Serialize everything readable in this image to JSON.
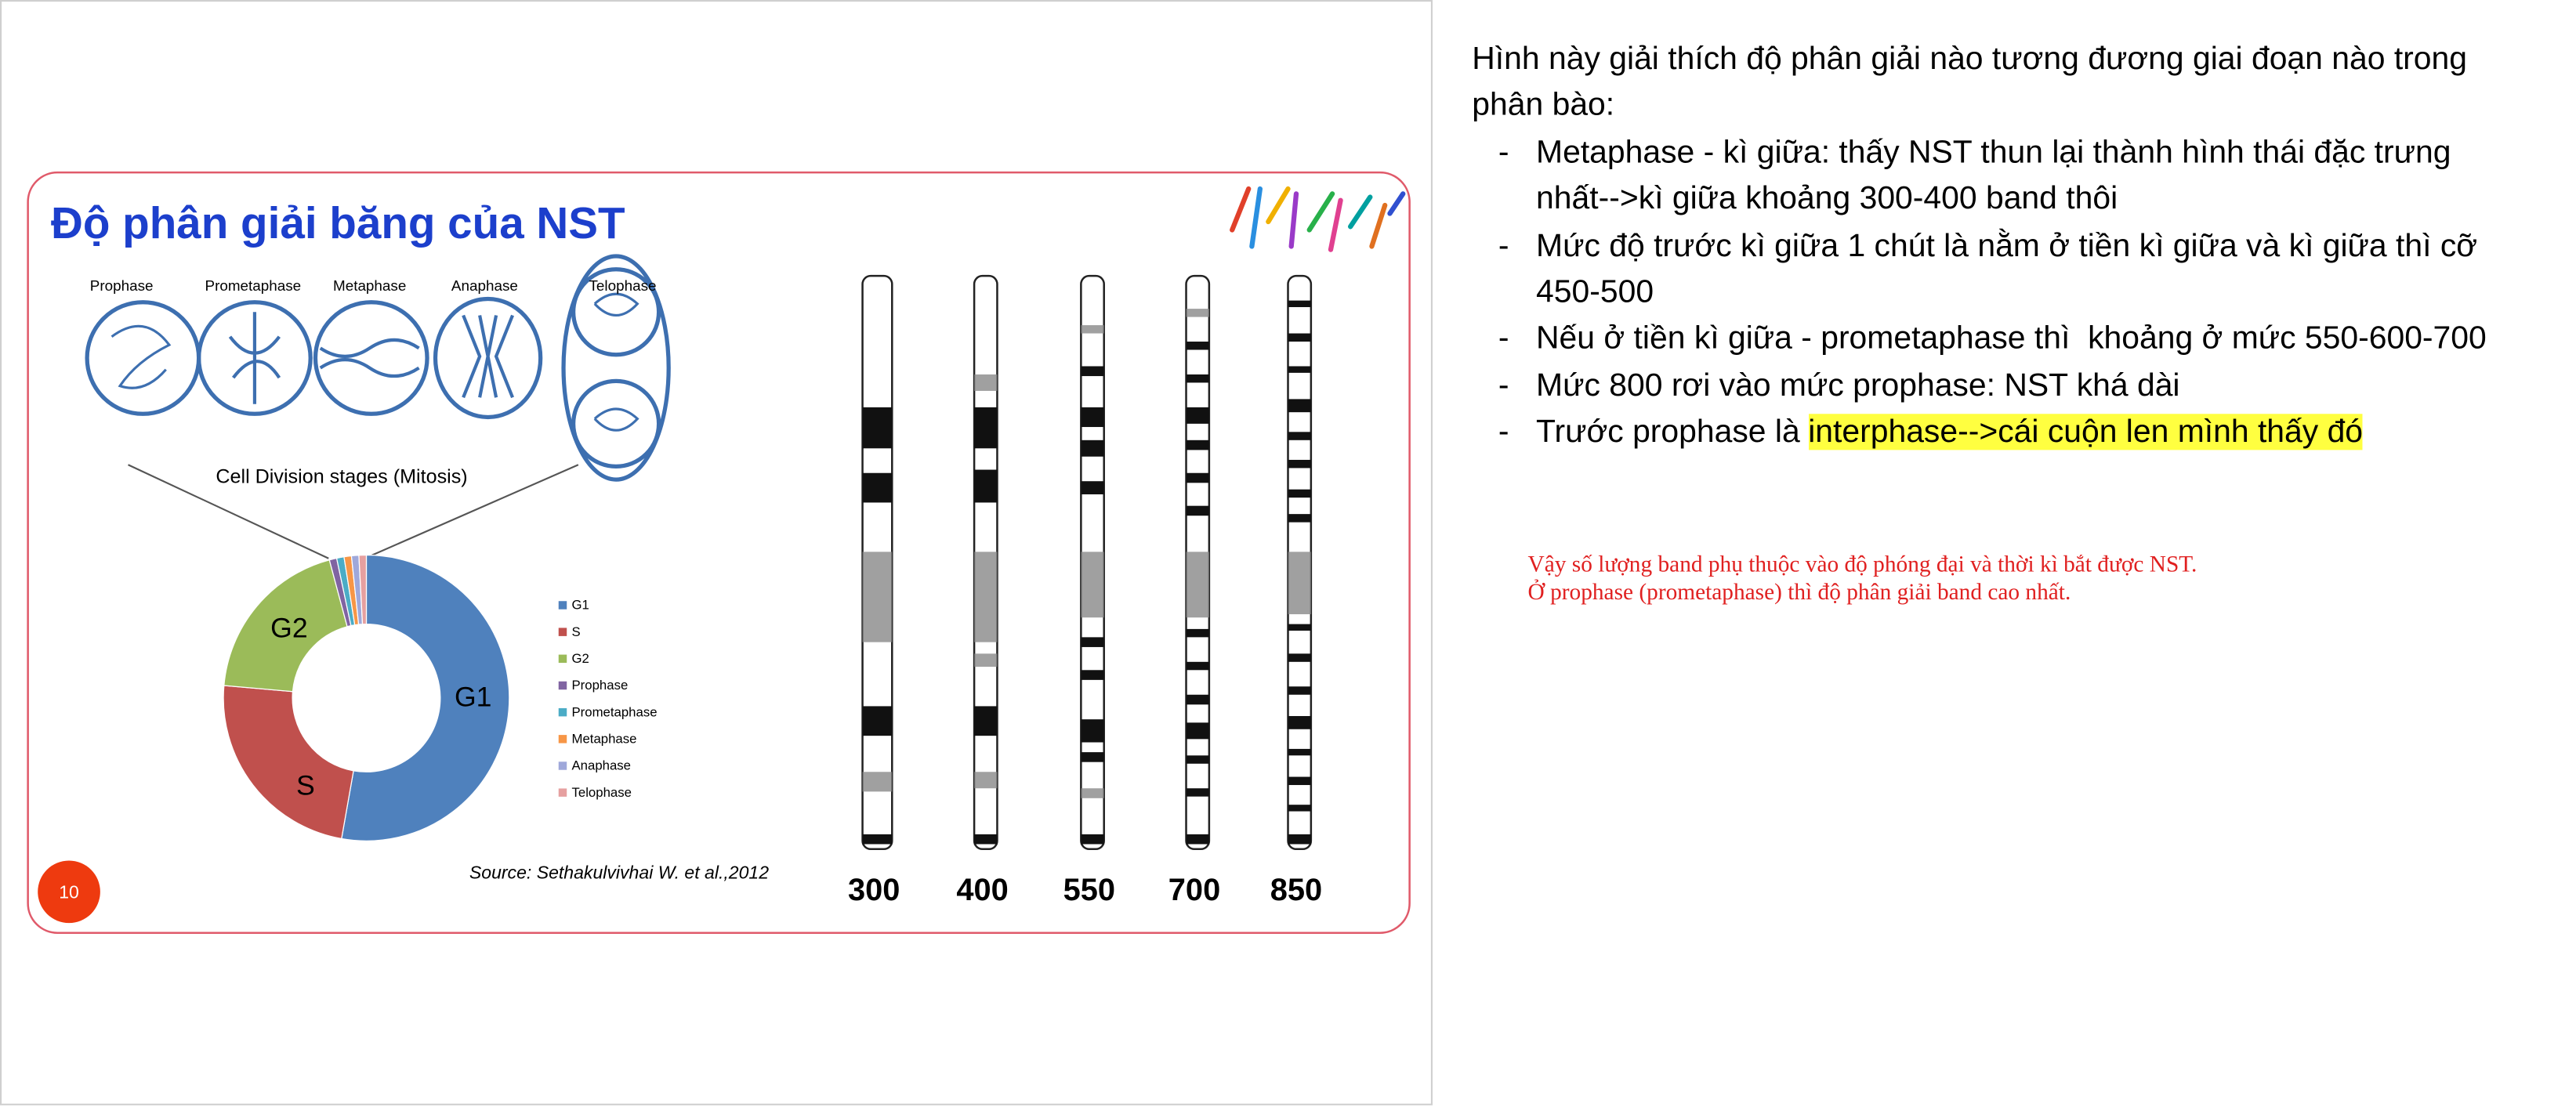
{
  "slide": {
    "title": "Độ phân giải băng của NST",
    "stages": [
      "Prophase",
      "Prometaphase",
      "Metaphase",
      "Anaphase",
      "Telophase"
    ],
    "caption": "Cell Division stages (Mitosis)",
    "donut_labels": [
      "G1",
      "S",
      "G2"
    ],
    "legend": [
      "G1",
      "S",
      "G2",
      "Prophase",
      "Prometaphase",
      "Metaphase",
      "Anaphase",
      "Telophase"
    ],
    "source": "Source: Sethakulvivhai W. et al.,2012",
    "page_number": "10",
    "resolutions": [
      "300",
      "400",
      "550",
      "700",
      "850"
    ]
  },
  "notes": {
    "intro": [
      "Hình này giải thích độ phân giải nào tương đương giai đoạn nào trong",
      "phân bào:"
    ],
    "bullets": [
      [
        "Metaphase - kì giữa: thấy NST thun lại thành hình thái đặc trưng",
        "nhất-->kì giữa khoảng 300-400 band thôi"
      ],
      [
        "Mức độ trước kì giữa 1 chút là nằm ở tiền kì giữa và kì giữa thì cỡ",
        "450-500"
      ],
      [
        "Nếu ở tiền kì giữa - prometaphase thì  khoảng ở mức 550-600-700"
      ],
      [
        "Mức 800 rơi vào mức prophase: NST khá dài"
      ],
      [
        "Trước prophase là"
      ]
    ],
    "highlight": "interphase-->cái cuộn len mình thấy đó",
    "remarks": [
      "Vậy số lượng band phụ thuộc vào độ phóng đại và thời kì bắt được NST.",
      "Ở prophase (prometaphase) thì độ phân giải band cao nhất."
    ]
  }
}
